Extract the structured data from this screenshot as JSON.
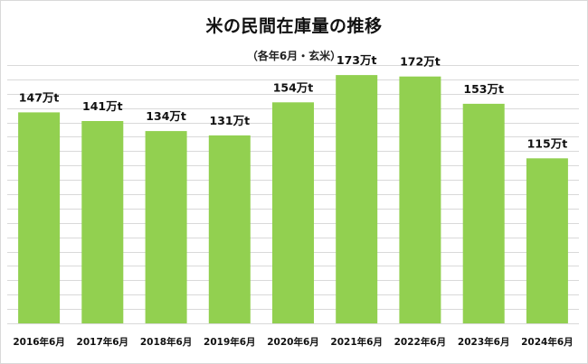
{
  "colors": {
    "bar": "#92d050",
    "grid": "#d9d9d9",
    "text": "#111111"
  },
  "chart_data": {
    "type": "bar",
    "title": "米の民間在庫量の推移",
    "subtitle": "（各年6月・玄米）",
    "xlabel": "",
    "ylabel": "",
    "categories": [
      "2016年6月",
      "2017年6月",
      "2018年6月",
      "2019年6月",
      "2020年6月",
      "2021年6月",
      "2022年6月",
      "2023年6月",
      "2024年6月"
    ],
    "values": [
      147,
      141,
      134,
      131,
      154,
      173,
      172,
      153,
      115
    ],
    "data_labels": [
      "147万t",
      "141万t",
      "134万t",
      "131万t",
      "154万t",
      "173万t",
      "172万t",
      "153万t",
      "115万t"
    ],
    "unit": "万t",
    "ylim": [
      0,
      180
    ],
    "grid": true,
    "legend": "none"
  }
}
